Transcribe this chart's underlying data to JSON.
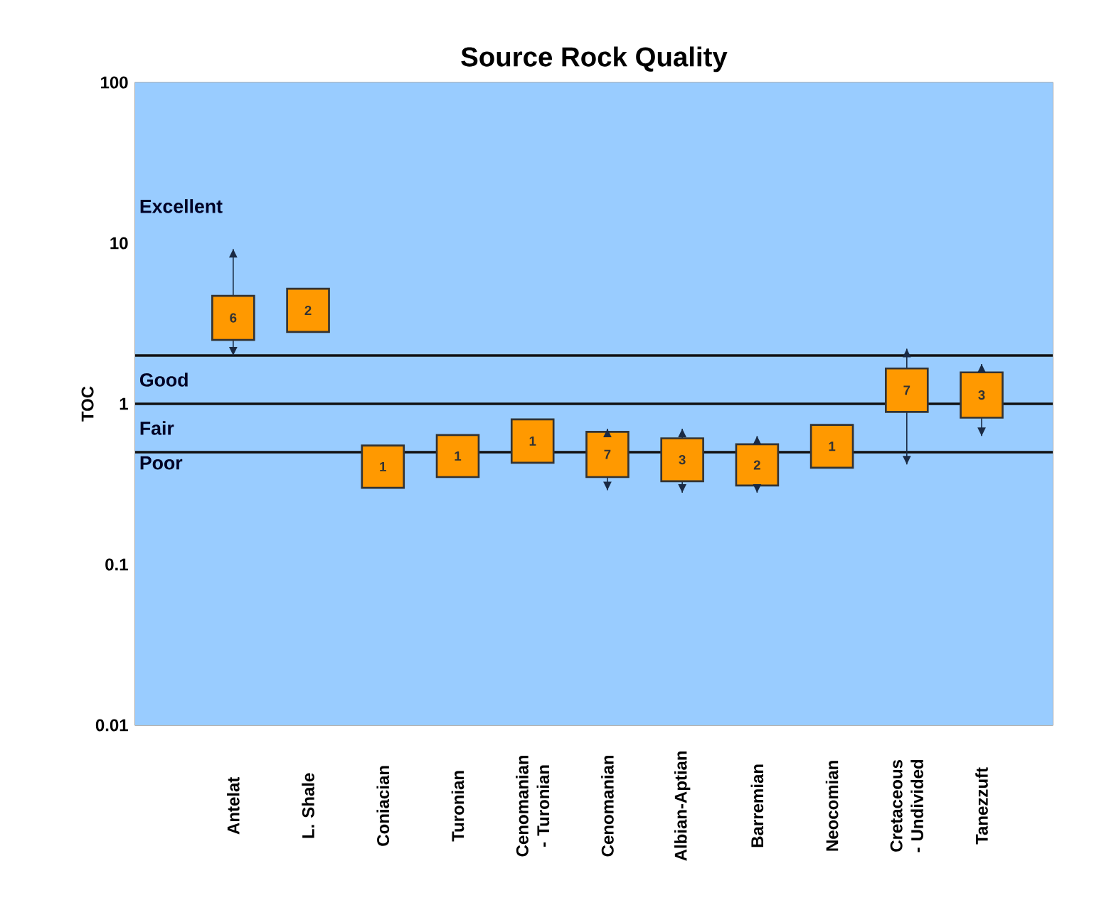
{
  "chart_data": {
    "type": "bar",
    "title": "Source Rock Quality",
    "ylabel": "TOC",
    "categories": [
      "Antelat",
      "L. Shale",
      "Coniacian",
      "Turonian",
      "Cenomanian - Turonian",
      "Cenomanian",
      "Albian-Aptian",
      "Barremian",
      "Neocomian",
      "Cretaceous - Undivided",
      "Tanezzuft"
    ],
    "base": [
      2.5,
      2.8,
      0.3,
      0.35,
      0.43,
      0.35,
      0.33,
      0.31,
      0.4,
      0.89,
      0.82
    ],
    "values": [
      2.2,
      2.4,
      0.25,
      0.29,
      0.37,
      0.32,
      0.28,
      0.25,
      0.34,
      0.77,
      0.75
    ],
    "errors": [
      [
        2.0,
        9.2
      ],
      null,
      null,
      null,
      null,
      [
        0.29,
        0.7
      ],
      [
        0.28,
        0.7
      ],
      [
        0.28,
        0.63
      ],
      null,
      [
        0.42,
        2.2
      ],
      [
        0.63,
        1.77
      ]
    ],
    "annotations": [
      "6",
      "2",
      "1",
      "1",
      "1",
      "7",
      "3",
      "2",
      "1",
      "7",
      "3"
    ],
    "color": "#ff9900",
    "log": true,
    "ylim": [
      0.01,
      100
    ],
    "yticks": [
      0.01,
      0.1,
      1,
      10,
      100
    ],
    "ref_lines": [
      {
        "axis": "y",
        "value": 2,
        "color": "#111111"
      },
      {
        "axis": "y",
        "value": 1,
        "color": "#111111"
      },
      {
        "axis": "y",
        "value": 0.5,
        "color": "#111111"
      }
    ],
    "bands": [
      {
        "axis": "y",
        "from": 2,
        "to": 100,
        "label": "Excellent",
        "color": "#99ccff"
      },
      {
        "axis": "y",
        "from": 1,
        "to": 2,
        "label": "Good",
        "color": "#99ccff"
      },
      {
        "axis": "y",
        "from": 0.5,
        "to": 1,
        "label": "Fair",
        "color": "#99ccff"
      },
      {
        "axis": "y",
        "from": 0.01,
        "to": 0.5,
        "label": "Poor",
        "color": "#99ccff"
      }
    ]
  }
}
